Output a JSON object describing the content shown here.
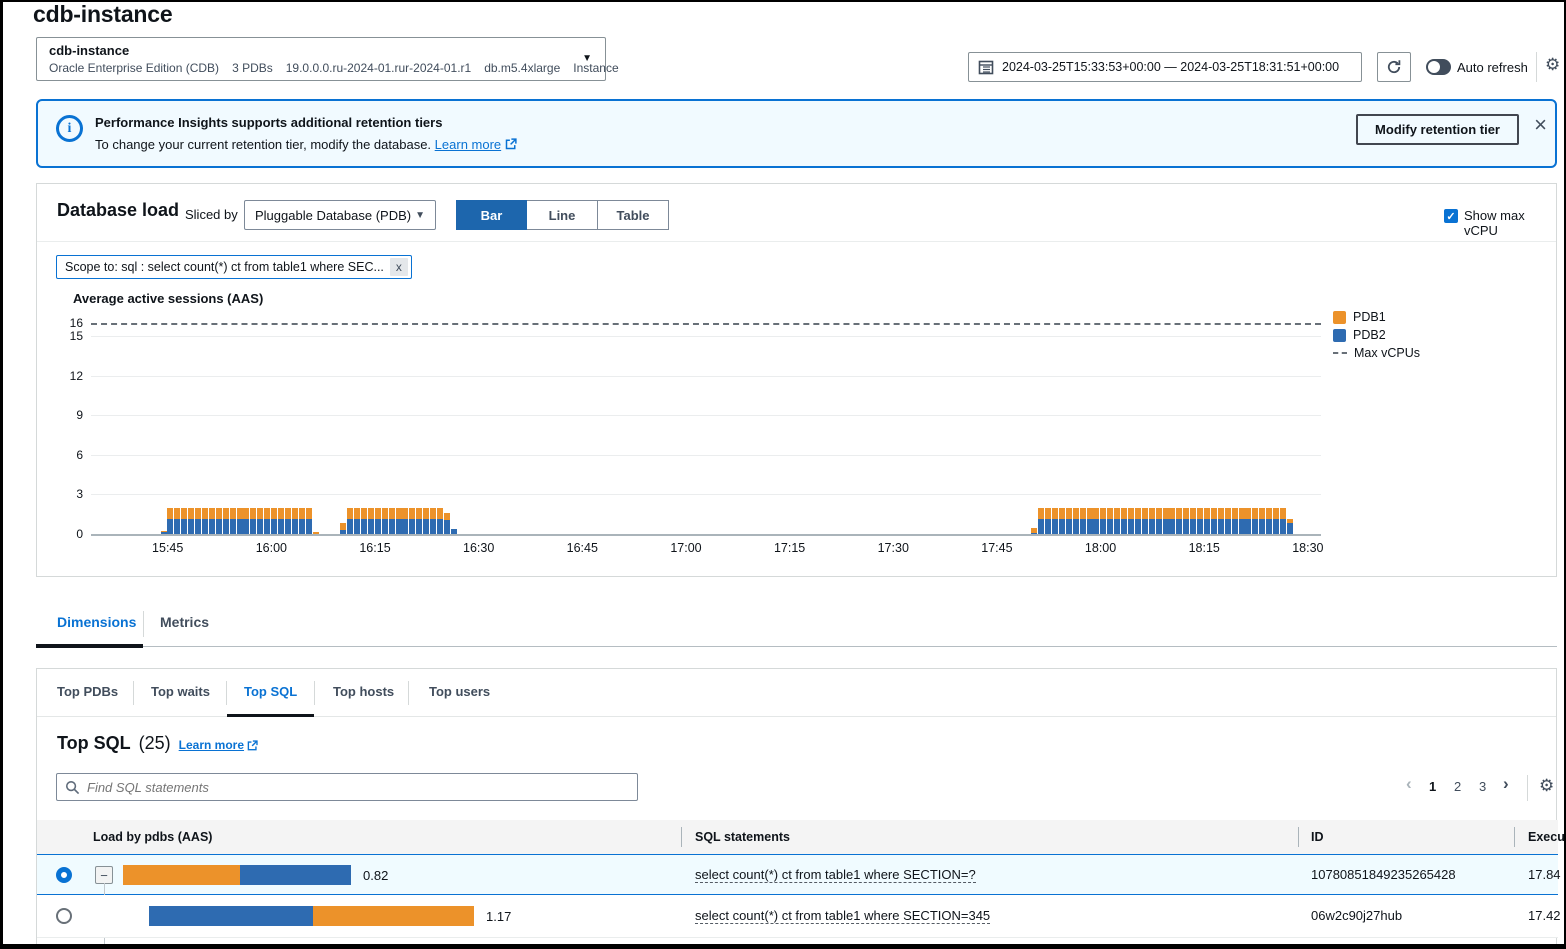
{
  "page": {
    "title": "cdb-instance"
  },
  "instance_selector": {
    "name": "cdb-instance",
    "engine": "Oracle Enterprise Edition (CDB)",
    "pdbs": "3 PDBs",
    "version": "19.0.0.0.ru-2024-01.rur-2024-01.r1",
    "instance_class": "db.m5.4xlarge",
    "scope": "Instance"
  },
  "time_controls": {
    "range": "2024-03-25T15:33:53+00:00 — 2024-03-25T18:31:51+00:00",
    "auto_refresh_label": "Auto refresh"
  },
  "banner": {
    "title": "Performance Insights supports additional retention tiers",
    "body": "To change your current retention tier, modify the database.",
    "learn_more_label": "Learn more",
    "modify_button_label": "Modify retention tier"
  },
  "db_load": {
    "title": "Database load",
    "sliced_by_label": "Sliced by",
    "slice_value": "Pluggable Database (PDB)",
    "views": [
      "Bar",
      "Line",
      "Table"
    ],
    "active_view": "Bar",
    "show_max_vcpu_label": "Show max vCPU",
    "scope_tag": "Scope to: sql : select count(*) ct from table1 where SEC...",
    "scope_tag_close": "x"
  },
  "chart_data": {
    "type": "bar",
    "stacked": true,
    "title": "Average active sessions (AAS)",
    "ylabel": "Average active sessions (AAS)",
    "max_vcpus": 16,
    "ylim": [
      0,
      16
    ],
    "y_ticks": [
      0,
      3,
      6,
      9,
      12,
      15,
      16
    ],
    "grid": true,
    "legend_position": "right",
    "x_range_minutes": 178,
    "x_axis_start": "15:33:53",
    "x_ticks": [
      {
        "m": 11.1,
        "label": "15:45"
      },
      {
        "m": 26.1,
        "label": "16:00"
      },
      {
        "m": 41.1,
        "label": "16:15"
      },
      {
        "m": 56.1,
        "label": "16:30"
      },
      {
        "m": 71.1,
        "label": "16:45"
      },
      {
        "m": 86.1,
        "label": "17:00"
      },
      {
        "m": 101.1,
        "label": "17:15"
      },
      {
        "m": 116.1,
        "label": "17:30"
      },
      {
        "m": 131.1,
        "label": "17:45"
      },
      {
        "m": 146.1,
        "label": "18:00"
      },
      {
        "m": 161.1,
        "label": "18:15"
      },
      {
        "m": 176.1,
        "label": "18:30"
      }
    ],
    "legend": [
      {
        "label": "PDB1",
        "color": "#ec922a",
        "type": "square"
      },
      {
        "label": "PDB2",
        "color": "#2e6bb1",
        "type": "square"
      },
      {
        "label": "Max vCPUs",
        "color": "#687078",
        "type": "dashed"
      }
    ],
    "series_order_bottom_to_top": [
      "PDB2",
      "PDB1"
    ],
    "bars_format": "[minute_offset, PDB2_aas, PDB1_aas]",
    "bars": [
      [
        10.5,
        0.15,
        0.05
      ],
      [
        11.5,
        1.15,
        0.85
      ],
      [
        12.5,
        1.15,
        0.85
      ],
      [
        13.5,
        1.15,
        0.85
      ],
      [
        14.5,
        1.15,
        0.85
      ],
      [
        15.5,
        1.15,
        0.85
      ],
      [
        16.5,
        1.15,
        0.85
      ],
      [
        17.5,
        1.15,
        0.85
      ],
      [
        18.5,
        1.15,
        0.85
      ],
      [
        19.5,
        1.15,
        0.85
      ],
      [
        20.5,
        1.15,
        0.85
      ],
      [
        21.5,
        1.15,
        0.85
      ],
      [
        22.5,
        1.15,
        0.85
      ],
      [
        23.5,
        1.15,
        0.85
      ],
      [
        24.5,
        1.15,
        0.85
      ],
      [
        25.5,
        1.15,
        0.85
      ],
      [
        26.5,
        1.15,
        0.85
      ],
      [
        27.5,
        1.15,
        0.85
      ],
      [
        28.5,
        1.15,
        0.85
      ],
      [
        29.5,
        1.15,
        0.85
      ],
      [
        30.5,
        1.15,
        0.85
      ],
      [
        31.5,
        1.15,
        0.85
      ],
      [
        32.5,
        0,
        0.15
      ],
      [
        36.5,
        0.3,
        0.5
      ],
      [
        37.5,
        1.15,
        0.85
      ],
      [
        38.5,
        1.15,
        0.85
      ],
      [
        39.5,
        1.15,
        0.85
      ],
      [
        40.5,
        1.15,
        0.85
      ],
      [
        41.5,
        1.15,
        0.85
      ],
      [
        42.5,
        1.15,
        0.85
      ],
      [
        43.5,
        1.15,
        0.85
      ],
      [
        44.5,
        1.15,
        0.85
      ],
      [
        45.5,
        1.15,
        0.85
      ],
      [
        46.5,
        1.15,
        0.85
      ],
      [
        47.5,
        1.15,
        0.85
      ],
      [
        48.5,
        1.15,
        0.85
      ],
      [
        49.5,
        1.15,
        0.85
      ],
      [
        50.5,
        1.15,
        0.85
      ],
      [
        51.5,
        1.05,
        0.55
      ],
      [
        52.5,
        0.4,
        0
      ],
      [
        136.5,
        0.1,
        0.35
      ],
      [
        137.5,
        1.15,
        0.85
      ],
      [
        138.5,
        1.15,
        0.85
      ],
      [
        139.5,
        1.15,
        0.85
      ],
      [
        140.5,
        1.15,
        0.85
      ],
      [
        141.5,
        1.15,
        0.85
      ],
      [
        142.5,
        1.15,
        0.85
      ],
      [
        143.5,
        1.15,
        0.85
      ],
      [
        144.5,
        1.15,
        0.85
      ],
      [
        145.5,
        1.15,
        0.85
      ],
      [
        146.5,
        1.15,
        0.85
      ],
      [
        147.5,
        1.15,
        0.85
      ],
      [
        148.5,
        1.15,
        0.85
      ],
      [
        149.5,
        1.15,
        0.85
      ],
      [
        150.5,
        1.15,
        0.85
      ],
      [
        151.5,
        1.15,
        0.85
      ],
      [
        152.5,
        1.15,
        0.85
      ],
      [
        153.5,
        1.15,
        0.85
      ],
      [
        154.5,
        1.15,
        0.85
      ],
      [
        155.5,
        1.15,
        0.85
      ],
      [
        156.5,
        1.15,
        0.85
      ],
      [
        157.5,
        1.15,
        0.85
      ],
      [
        158.5,
        1.15,
        0.85
      ],
      [
        159.5,
        1.15,
        0.85
      ],
      [
        160.5,
        1.15,
        0.85
      ],
      [
        161.5,
        1.15,
        0.85
      ],
      [
        162.5,
        1.15,
        0.85
      ],
      [
        163.5,
        1.15,
        0.85
      ],
      [
        164.5,
        1.15,
        0.85
      ],
      [
        165.5,
        1.15,
        0.85
      ],
      [
        166.5,
        1.15,
        0.85
      ],
      [
        167.5,
        1.15,
        0.85
      ],
      [
        168.5,
        1.15,
        0.85
      ],
      [
        169.5,
        1.15,
        0.85
      ],
      [
        170.5,
        1.15,
        0.85
      ],
      [
        171.5,
        1.15,
        0.85
      ],
      [
        172.5,
        1.15,
        0.85
      ],
      [
        173.5,
        0.85,
        0.3
      ]
    ]
  },
  "dimension_tabs": {
    "items": [
      "Dimensions",
      "Metrics"
    ],
    "active": "Dimensions"
  },
  "top_tabs": {
    "items": [
      "Top PDBs",
      "Top waits",
      "Top SQL",
      "Top hosts",
      "Top users"
    ],
    "active": "Top SQL"
  },
  "top_sql": {
    "title": "Top SQL",
    "count": "(25)",
    "learn_more_label": "Learn more",
    "search_placeholder": "Find SQL statements",
    "pagination": {
      "prev": "‹",
      "pages": [
        "1",
        "2",
        "3"
      ],
      "next": "›",
      "active": "1"
    }
  },
  "table": {
    "headers": {
      "load": "Load by pdbs (AAS)",
      "sql": "SQL statements",
      "id": "ID",
      "exec": "Execu"
    },
    "rows": [
      {
        "selected": true,
        "load": "0.82",
        "bar_segments": [
          {
            "color": "#ec922a",
            "value": 0.42
          },
          {
            "color": "#2e6bb1",
            "value": 0.4
          }
        ],
        "sql": "select count(*) ct from table1 where SECTION=?",
        "id": "10780851849235265428",
        "exec": "17.84"
      },
      {
        "selected": false,
        "load": "1.17",
        "bar_segments": [
          {
            "color": "#2e6bb1",
            "value": 0.59
          },
          {
            "color": "#ec922a",
            "value": 0.58
          }
        ],
        "sql": "select count(*) ct from table1 where SECTION=345",
        "id": "06w2c90j27hub",
        "exec": "17.42"
      }
    ]
  }
}
